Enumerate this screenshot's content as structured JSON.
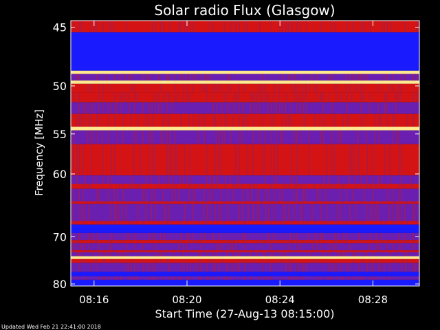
{
  "chart_data": {
    "type": "heatmap",
    "title": "Solar radio Flux (Glasgow)",
    "xlabel": "Start Time (27-Aug-13 08:15:00)",
    "ylabel": "Frequency [MHz]",
    "x_range": [
      "08:15:00",
      "08:30:00"
    ],
    "y_range_mhz": [
      44.5,
      80.5
    ],
    "y_scale": "reciprocal",
    "x_ticks": [
      {
        "time": "08:16",
        "label": "08:16"
      },
      {
        "time": "08:20",
        "label": "08:20"
      },
      {
        "time": "08:24",
        "label": "08:24"
      },
      {
        "time": "08:28",
        "label": "08:28"
      }
    ],
    "y_ticks": [
      {
        "mhz": 45,
        "label": "45"
      },
      {
        "mhz": 50,
        "label": "50"
      },
      {
        "mhz": 55,
        "label": "55"
      },
      {
        "mhz": 60,
        "label": "60"
      },
      {
        "mhz": 70,
        "label": "70"
      },
      {
        "mhz": 80,
        "label": "80"
      }
    ],
    "bands": [
      {
        "f1": 44.5,
        "f2": 45.4,
        "intensity": "red"
      },
      {
        "f1": 45.4,
        "f2": 48.6,
        "intensity": "blue"
      },
      {
        "f1": 48.6,
        "f2": 48.9,
        "intensity": "yellow"
      },
      {
        "f1": 48.9,
        "f2": 49.5,
        "intensity": "purple"
      },
      {
        "f1": 49.5,
        "f2": 49.8,
        "intensity": "yellow"
      },
      {
        "f1": 49.8,
        "f2": 50.6,
        "intensity": "red"
      },
      {
        "f1": 50.6,
        "f2": 51.6,
        "intensity": "red"
      },
      {
        "f1": 51.6,
        "f2": 52.8,
        "intensity": "purple"
      },
      {
        "f1": 52.8,
        "f2": 54.2,
        "intensity": "red"
      },
      {
        "f1": 54.2,
        "f2": 54.6,
        "intensity": "yellow"
      },
      {
        "f1": 54.6,
        "f2": 56.2,
        "intensity": "purple"
      },
      {
        "f1": 56.2,
        "f2": 60.2,
        "intensity": "red"
      },
      {
        "f1": 60.2,
        "f2": 61.4,
        "intensity": "purple"
      },
      {
        "f1": 61.4,
        "f2": 62.1,
        "intensity": "red"
      },
      {
        "f1": 62.1,
        "f2": 64.0,
        "intensity": "purple"
      },
      {
        "f1": 64.0,
        "f2": 64.4,
        "intensity": "red"
      },
      {
        "f1": 64.4,
        "f2": 67.2,
        "intensity": "purple"
      },
      {
        "f1": 67.2,
        "f2": 67.8,
        "intensity": "red"
      },
      {
        "f1": 67.8,
        "f2": 69.3,
        "intensity": "blue"
      },
      {
        "f1": 69.3,
        "f2": 70.6,
        "intensity": "purple"
      },
      {
        "f1": 70.6,
        "f2": 71.2,
        "intensity": "red"
      },
      {
        "f1": 71.2,
        "f2": 72.6,
        "intensity": "purple"
      },
      {
        "f1": 72.6,
        "f2": 73.0,
        "intensity": "red"
      },
      {
        "f1": 73.0,
        "f2": 73.8,
        "intensity": "purple"
      },
      {
        "f1": 73.8,
        "f2": 74.4,
        "intensity": "yellow"
      },
      {
        "f1": 74.4,
        "f2": 75.2,
        "intensity": "red"
      },
      {
        "f1": 75.2,
        "f2": 77.2,
        "intensity": "purple"
      },
      {
        "f1": 77.2,
        "f2": 78.2,
        "intensity": "blue"
      },
      {
        "f1": 78.2,
        "f2": 79.0,
        "intensity": "purple"
      },
      {
        "f1": 79.0,
        "f2": 80.5,
        "intensity": "blue"
      }
    ]
  },
  "footer": {
    "updated_text": "Updated Wed Feb 21 22:41:00 2018"
  },
  "colors": {
    "background": "#000000",
    "axis": "#ffffff",
    "blue": "#1a1aff",
    "purple": "#6a1fb0",
    "red": "#d41414",
    "yellow": "#ffe890"
  }
}
